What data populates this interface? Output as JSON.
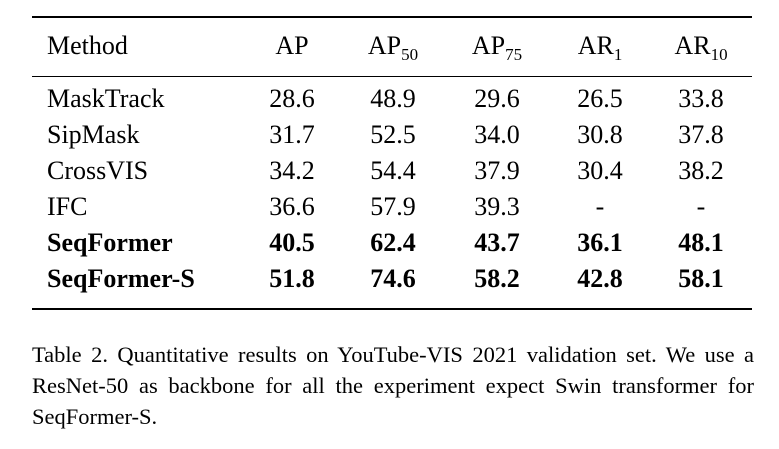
{
  "table": {
    "columns": [
      {
        "base": "Method",
        "sub": ""
      },
      {
        "base": "AP",
        "sub": ""
      },
      {
        "base": "AP",
        "sub": "50"
      },
      {
        "base": "AP",
        "sub": "75"
      },
      {
        "base": "AR",
        "sub": "1"
      },
      {
        "base": "AR",
        "sub": "10"
      }
    ],
    "rows": [
      {
        "method": "MaskTrack",
        "bold": false,
        "values": [
          "28.6",
          "48.9",
          "29.6",
          "26.5",
          "33.8"
        ]
      },
      {
        "method": "SipMask",
        "bold": false,
        "values": [
          "31.7",
          "52.5",
          "34.0",
          "30.8",
          "37.8"
        ]
      },
      {
        "method": "CrossVIS",
        "bold": false,
        "values": [
          "34.2",
          "54.4",
          "37.9",
          "30.4",
          "38.2"
        ]
      },
      {
        "method": "IFC",
        "bold": false,
        "values": [
          "36.6",
          "57.9",
          "39.3",
          "-",
          "-"
        ]
      },
      {
        "method": "SeqFormer",
        "bold": true,
        "values": [
          "40.5",
          "62.4",
          "43.7",
          "36.1",
          "48.1"
        ]
      },
      {
        "method": "SeqFormer-S",
        "bold": true,
        "values": [
          "51.8",
          "74.6",
          "58.2",
          "42.8",
          "58.1"
        ]
      }
    ]
  },
  "caption": "Table 2. Quantitative results on YouTube-VIS 2021 validation set. We use a ResNet-50 as backbone for all the experiment expect Swin transformer for SeqFormer-S."
}
